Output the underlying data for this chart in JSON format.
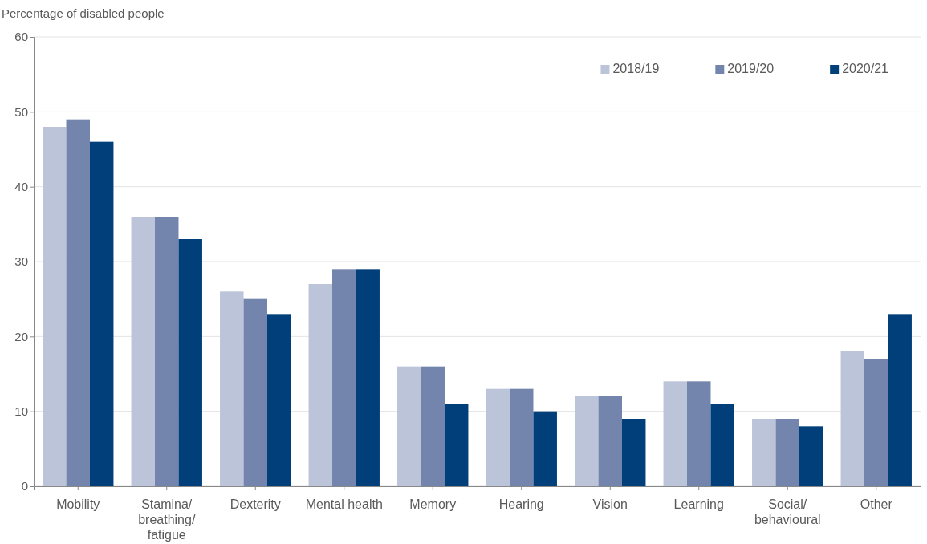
{
  "chart_data": {
    "type": "bar",
    "ylabel": "Percentage of disabled people",
    "categories": [
      "Mobility",
      "Stamina/ breathing/ fatigue",
      "Dexterity",
      "Mental health",
      "Memory",
      "Hearing",
      "Vision",
      "Learning",
      "Social/ behavioural",
      "Other"
    ],
    "series": [
      {
        "name": "2018/19",
        "color": "#bcc4d9",
        "values": [
          48,
          36,
          26,
          27,
          16,
          13,
          12,
          14,
          9,
          18
        ]
      },
      {
        "name": "2019/20",
        "color": "#7384ad",
        "values": [
          49,
          36,
          25,
          29,
          16,
          13,
          12,
          14,
          9,
          17
        ]
      },
      {
        "name": "2020/21",
        "color": "#003f7a",
        "values": [
          46,
          33,
          23,
          29,
          11,
          10,
          9,
          11,
          8,
          23
        ]
      }
    ],
    "ylim": [
      0,
      60
    ],
    "yticks": [
      0,
      10,
      20,
      30,
      40,
      50,
      60
    ],
    "grid": "y",
    "legend": "top right"
  }
}
